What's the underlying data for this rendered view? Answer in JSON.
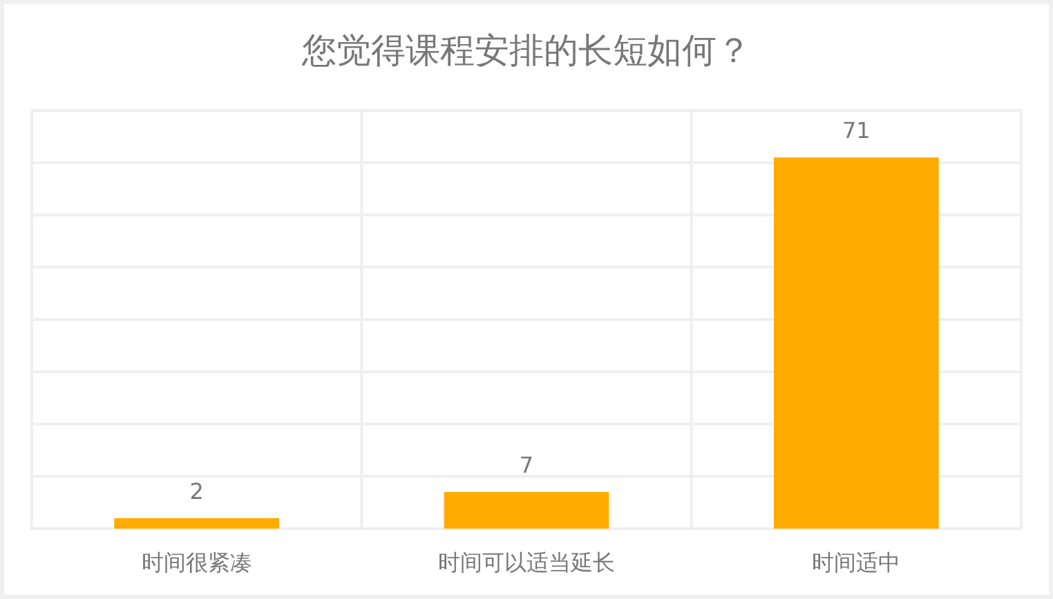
{
  "chart_data": {
    "type": "bar",
    "title": "您觉得课程安排的长短如何？",
    "categories": [
      "时间很紧凑",
      "时间可以适当延长",
      "时间适中"
    ],
    "values": [
      2,
      7,
      71
    ],
    "color": "#ffab00",
    "ylim": [
      0,
      80
    ],
    "yticks": [
      {
        "value": 0,
        "label": null
      },
      {
        "value": 10,
        "label": null
      },
      {
        "value": 20,
        "label": null
      },
      {
        "value": 30,
        "label": null
      },
      {
        "value": 40,
        "label": null
      },
      {
        "value": 50,
        "label": null
      },
      {
        "value": 60,
        "label": null
      },
      {
        "value": 70,
        "label": null
      },
      {
        "value": 80,
        "label": null
      }
    ],
    "grid": true,
    "data_labels": true,
    "tick_labels": "x"
  }
}
